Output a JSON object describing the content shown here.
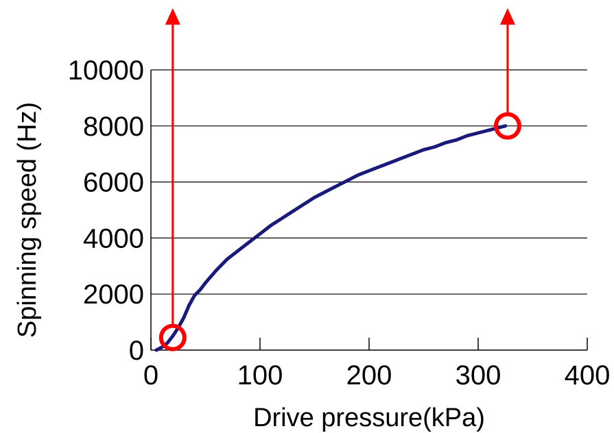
{
  "chart_data": {
    "type": "line",
    "title": "",
    "xlabel": "Drive pressure(kPa)",
    "ylabel": "Spinning speed (Hz)",
    "xlim": [
      0,
      400
    ],
    "ylim": [
      0,
      10000
    ],
    "x_ticks": [
      "0",
      "100",
      "200",
      "300",
      "400"
    ],
    "y_ticks": [
      "0",
      "2000",
      "4000",
      "6000",
      "8000",
      "10000"
    ],
    "grid": "horizontal",
    "legend": "none",
    "series": [
      {
        "color": "#1a1a7a",
        "points": [
          [
            5,
            0
          ],
          [
            10,
            100
          ],
          [
            15,
            250
          ],
          [
            20,
            500
          ],
          [
            25,
            800
          ],
          [
            30,
            1150
          ],
          [
            35,
            1600
          ],
          [
            40,
            1950
          ],
          [
            45,
            2150
          ],
          [
            50,
            2400
          ],
          [
            60,
            2850
          ],
          [
            70,
            3250
          ],
          [
            80,
            3550
          ],
          [
            90,
            3850
          ],
          [
            100,
            4150
          ],
          [
            110,
            4450
          ],
          [
            120,
            4700
          ],
          [
            130,
            4950
          ],
          [
            140,
            5200
          ],
          [
            150,
            5450
          ],
          [
            160,
            5650
          ],
          [
            170,
            5850
          ],
          [
            180,
            6050
          ],
          [
            190,
            6250
          ],
          [
            200,
            6400
          ],
          [
            210,
            6550
          ],
          [
            220,
            6700
          ],
          [
            230,
            6850
          ],
          [
            240,
            7000
          ],
          [
            250,
            7150
          ],
          [
            260,
            7250
          ],
          [
            270,
            7400
          ],
          [
            280,
            7500
          ],
          [
            290,
            7650
          ],
          [
            300,
            7750
          ],
          [
            310,
            7850
          ],
          [
            320,
            7950
          ],
          [
            325,
            8000
          ]
        ]
      }
    ],
    "annotations": [
      {
        "type": "circle",
        "x": 20,
        "y": 450,
        "color": "#ff0000"
      },
      {
        "type": "circle",
        "x": 327,
        "y": 8000,
        "color": "#ff0000"
      },
      {
        "type": "arrow-up",
        "x": 20,
        "color": "#ff0000"
      },
      {
        "type": "arrow-up",
        "x": 327,
        "color": "#ff0000"
      }
    ]
  }
}
